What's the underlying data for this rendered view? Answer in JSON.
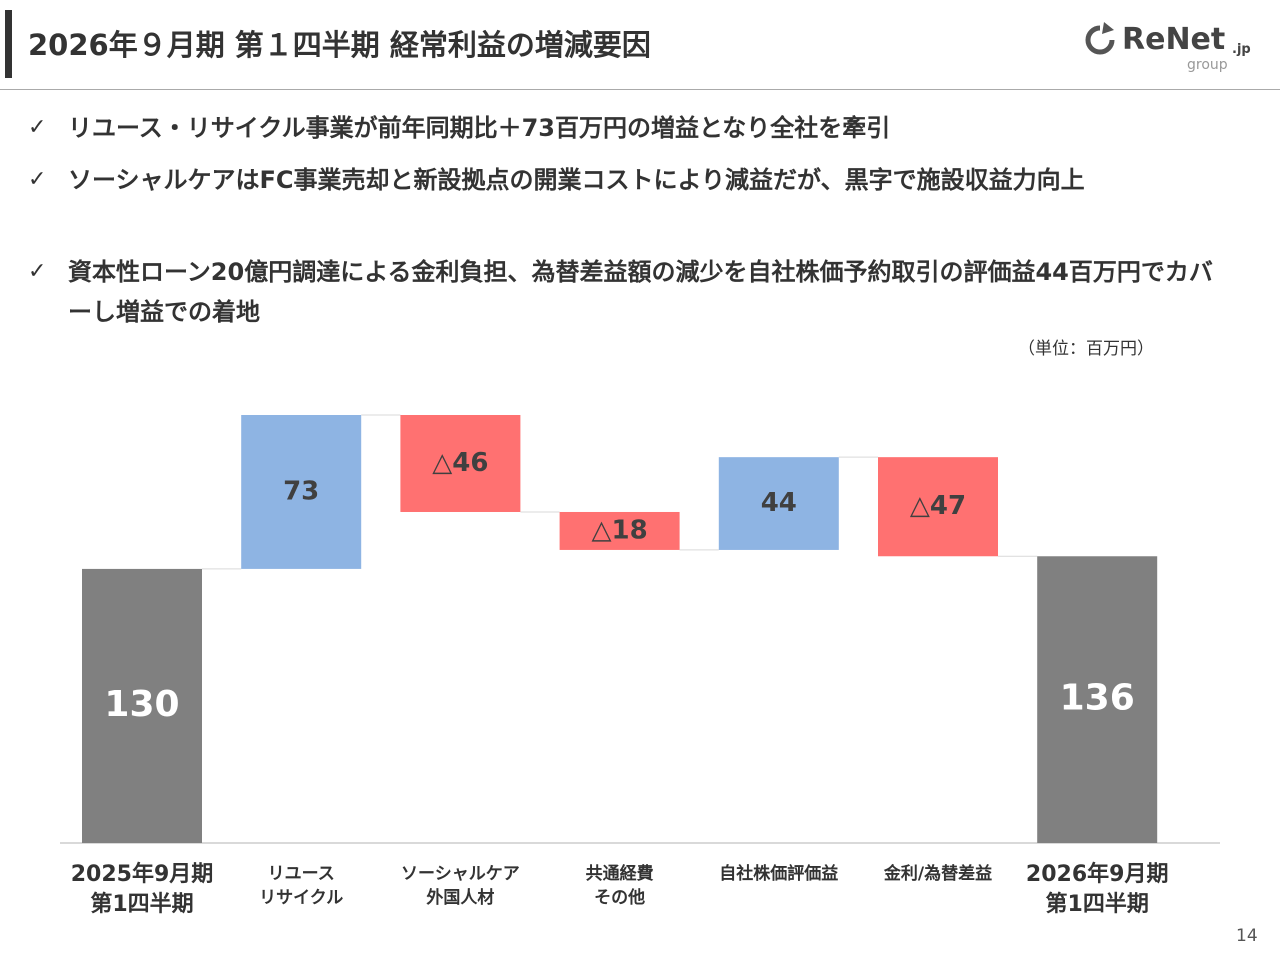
{
  "header": {
    "title": "2026年９月期 第１四半期 経常利益の増減要因",
    "logo": {
      "name": "ReNet",
      "suffix": ".jp",
      "sub": "group"
    }
  },
  "bullets": [
    "リユース・リサイクル事業が前年同期比＋73百万円の増益となり全社を牽引",
    "ソーシャルケアはFC事業売却と新設拠点の開業コストにより減益だが、黒字で施設収益力向上",
    "資本性ローン20億円調達による金利負担、為替差益額の減少を自社株価予約取引の評価益44百万円でカバーし増益での着地"
  ],
  "unit": "（単位：百万円）",
  "page_number": "14",
  "chart_data": {
    "type": "waterfall",
    "categories": [
      "2025年9月期\n第1四半期",
      "リユース\nリサイクル",
      "ソーシャルケア\n外国人材",
      "共通経費\nその他",
      "自社株価評価益",
      "金利/為替差益",
      "2026年9月期\n第1四半期"
    ],
    "values": [
      130,
      73,
      -46,
      -18,
      44,
      -47,
      136
    ],
    "value_labels": [
      "130",
      "73",
      "△46",
      "△18",
      "44",
      "△47",
      "136"
    ],
    "total_color": "#808080",
    "increase_color": "#8eb4e3",
    "decrease_color": "#ff7171"
  }
}
